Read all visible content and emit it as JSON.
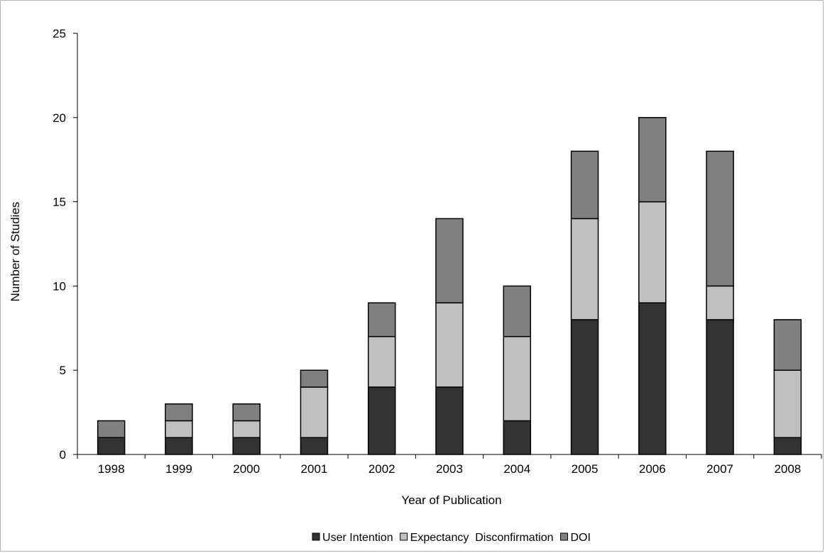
{
  "chart_data": {
    "type": "bar",
    "stacked": true,
    "title": "",
    "xlabel": "Year of Publication",
    "ylabel": "Number of Studies",
    "ylim": [
      0,
      25
    ],
    "yticks": [
      0,
      5,
      10,
      15,
      20,
      25
    ],
    "categories": [
      "1998",
      "1999",
      "2000",
      "2001",
      "2002",
      "2003",
      "2004",
      "2005",
      "2006",
      "2007",
      "2008"
    ],
    "series": [
      {
        "name": "User Intention",
        "color": "#333333",
        "values": [
          1,
          1,
          1,
          1,
          4,
          4,
          2,
          8,
          9,
          8,
          1
        ]
      },
      {
        "name": "Expectancy  Disconfirmation",
        "color": "#c0c0c0",
        "values": [
          0,
          1,
          1,
          3,
          3,
          5,
          5,
          6,
          6,
          2,
          4
        ]
      },
      {
        "name": "DOI",
        "color": "#808080",
        "values": [
          1,
          1,
          1,
          1,
          2,
          5,
          3,
          4,
          5,
          8,
          3
        ]
      }
    ],
    "legend_position": "bottom",
    "grid": false
  }
}
